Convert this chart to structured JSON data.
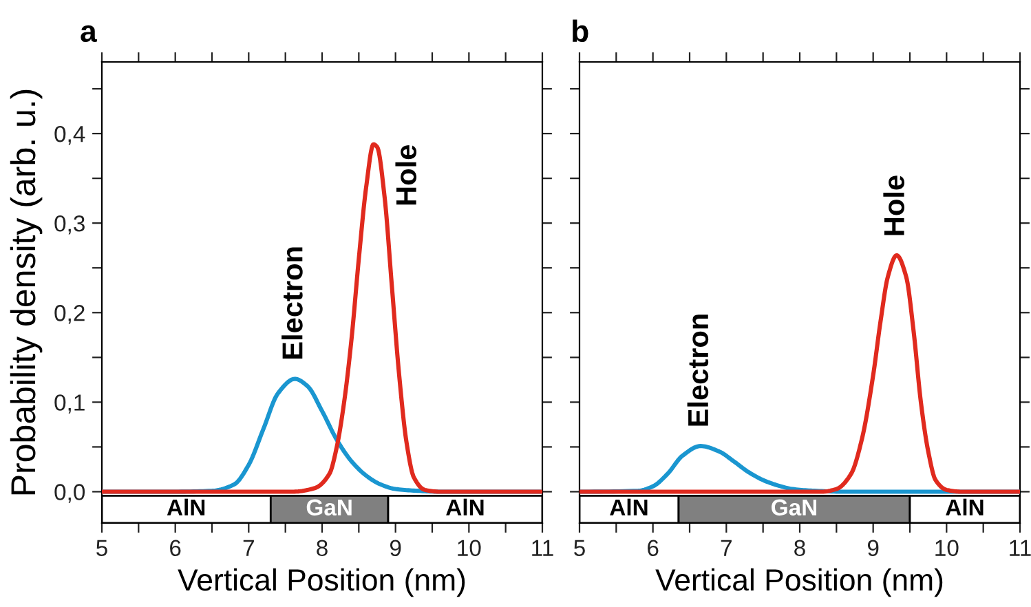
{
  "chart_data": [
    {
      "type": "line",
      "title": "a",
      "xlabel": "Vertical Position (nm)",
      "ylabel": "Probability density (arb. u.)",
      "xlim": [
        5,
        11
      ],
      "ylim": [
        -0.035,
        0.48
      ],
      "xticks": [
        5,
        {
          "value": 5.5,
          "label": null
        },
        6,
        {
          "value": 6.5,
          "label": null
        },
        7,
        {
          "value": 7.5,
          "label": null
        },
        8,
        {
          "value": 8.5,
          "label": null
        },
        9,
        {
          "value": 9.5,
          "label": null
        },
        10,
        {
          "value": 10.5,
          "label": null
        },
        11
      ],
      "yticks": [
        {
          "value": 0,
          "label": "0,0"
        },
        {
          "value": 0.05,
          "label": null
        },
        {
          "value": 0.1,
          "label": "0,1"
        },
        {
          "value": 0.15,
          "label": null
        },
        {
          "value": 0.2,
          "label": "0,2"
        },
        {
          "value": 0.25,
          "label": null
        },
        {
          "value": 0.3,
          "label": "0,3"
        },
        {
          "value": 0.35,
          "label": null
        },
        {
          "value": 0.4,
          "label": "0,4"
        },
        {
          "value": 0.45,
          "label": null
        }
      ],
      "series": [
        {
          "name": "Electron",
          "color": "#1a96d0",
          "x": [
            5,
            6,
            6.5,
            6.8,
            7.0,
            7.2,
            7.4,
            7.63,
            7.8,
            8.0,
            8.2,
            8.4,
            8.6,
            8.8,
            9.0,
            9.3,
            9.6,
            11
          ],
          "values": [
            0,
            0,
            0.001,
            0.008,
            0.03,
            0.07,
            0.11,
            0.126,
            0.118,
            0.09,
            0.058,
            0.034,
            0.018,
            0.008,
            0.003,
            0.001,
            0,
            0
          ]
        },
        {
          "name": "Hole",
          "color": "#e02a1e",
          "x": [
            5,
            7.6,
            7.9,
            8.1,
            8.2,
            8.3,
            8.4,
            8.5,
            8.6,
            8.7,
            8.75,
            8.85,
            8.95,
            9.05,
            9.15,
            9.25,
            9.4,
            9.6,
            11
          ],
          "values": [
            0,
            0,
            0.004,
            0.02,
            0.05,
            0.1,
            0.17,
            0.26,
            0.34,
            0.388,
            0.385,
            0.33,
            0.23,
            0.13,
            0.055,
            0.016,
            0.002,
            0,
            0
          ]
        }
      ],
      "bands": [
        {
          "axis": "x",
          "from": 5,
          "to": 7.3,
          "label": "AlN",
          "color": "#ffffff"
        },
        {
          "axis": "x",
          "from": 7.3,
          "to": 8.9,
          "label": "GaN",
          "color": "#808080"
        },
        {
          "axis": "x",
          "from": 8.9,
          "to": 11,
          "label": "AlN",
          "color": "#ffffff"
        }
      ]
    },
    {
      "type": "line",
      "title": "b",
      "xlabel": "Vertical Position (nm)",
      "xlim": [
        5,
        11
      ],
      "ylim": [
        -0.035,
        0.48
      ],
      "tick_labels": "x",
      "xticks": [
        5,
        {
          "value": 5.5,
          "label": null
        },
        6,
        {
          "value": 6.5,
          "label": null
        },
        7,
        {
          "value": 7.5,
          "label": null
        },
        8,
        {
          "value": 8.5,
          "label": null
        },
        9,
        {
          "value": 9.5,
          "label": null
        },
        10,
        {
          "value": 10.5,
          "label": null
        },
        11
      ],
      "yticks": [
        {
          "value": 0,
          "label": null
        },
        {
          "value": 0.05,
          "label": null
        },
        {
          "value": 0.1,
          "label": null
        },
        {
          "value": 0.15,
          "label": null
        },
        {
          "value": 0.2,
          "label": null
        },
        {
          "value": 0.25,
          "label": null
        },
        {
          "value": 0.3,
          "label": null
        },
        {
          "value": 0.35,
          "label": null
        },
        {
          "value": 0.4,
          "label": null
        },
        {
          "value": 0.45,
          "label": null
        }
      ],
      "series": [
        {
          "name": "Electron",
          "color": "#1a96d0",
          "x": [
            5,
            5.8,
            6.0,
            6.2,
            6.4,
            6.65,
            6.9,
            7.1,
            7.3,
            7.5,
            7.7,
            7.9,
            8.2,
            8.6,
            11
          ],
          "values": [
            0,
            0.001,
            0.006,
            0.02,
            0.04,
            0.051,
            0.045,
            0.034,
            0.022,
            0.013,
            0.007,
            0.003,
            0.001,
            0,
            0
          ]
        },
        {
          "name": "Hole",
          "color": "#e02a1e",
          "x": [
            5,
            8.3,
            8.5,
            8.7,
            8.85,
            9.0,
            9.1,
            9.2,
            9.32,
            9.45,
            9.55,
            9.65,
            9.75,
            9.85,
            10.0,
            10.2,
            11
          ],
          "values": [
            0,
            0,
            0.003,
            0.02,
            0.06,
            0.13,
            0.19,
            0.24,
            0.264,
            0.24,
            0.18,
            0.1,
            0.045,
            0.013,
            0.002,
            0,
            0
          ]
        }
      ],
      "bands": [
        {
          "axis": "x",
          "from": 5,
          "to": 6.35,
          "label": "AlN",
          "color": "#ffffff"
        },
        {
          "axis": "x",
          "from": 6.35,
          "to": 9.5,
          "label": "GaN",
          "color": "#808080"
        },
        {
          "axis": "x",
          "from": 9.5,
          "to": 11,
          "label": "AlN",
          "color": "#ffffff"
        }
      ]
    }
  ]
}
